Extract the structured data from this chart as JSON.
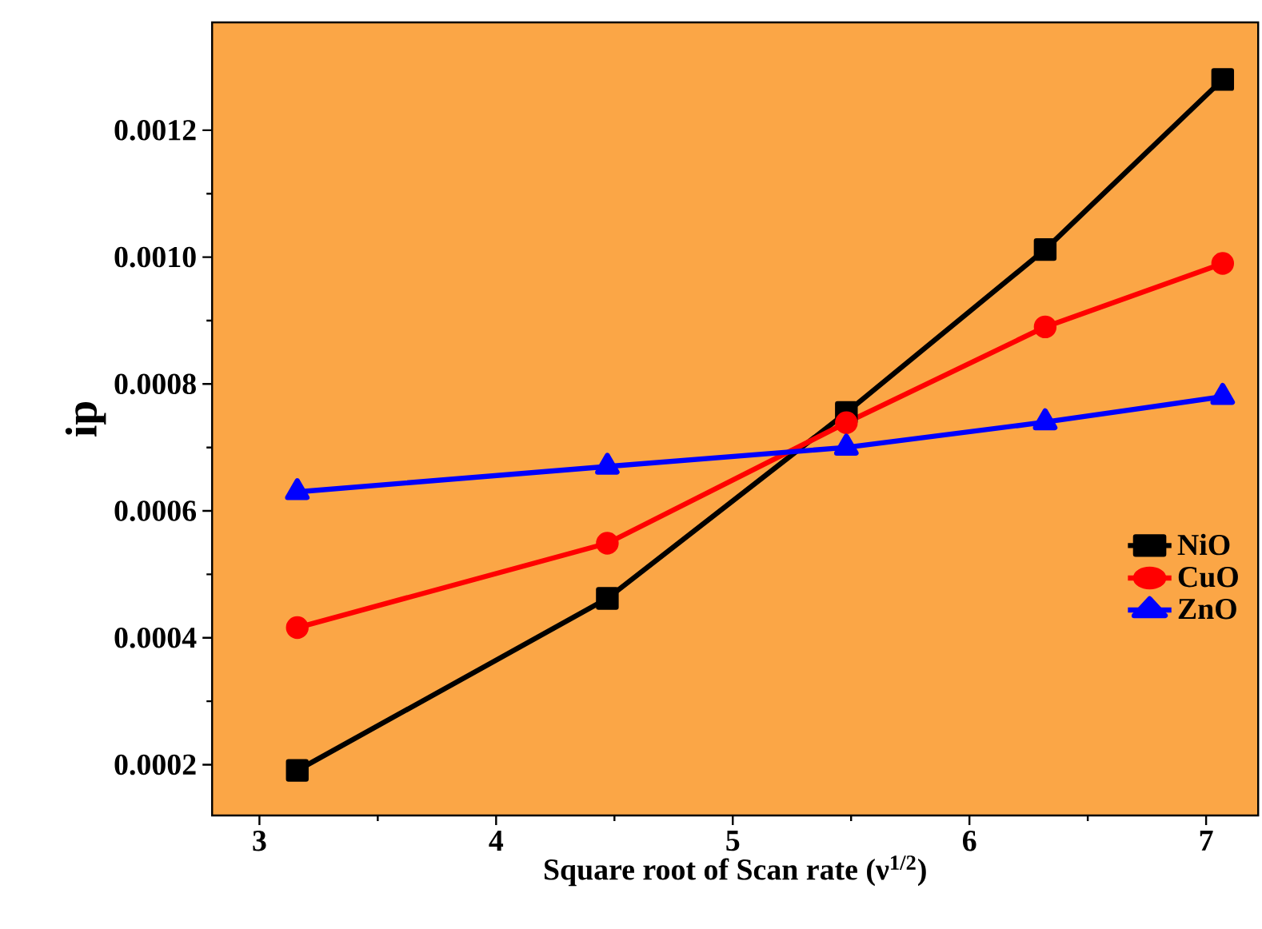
{
  "chart_data": {
    "type": "line",
    "xlabel": "Square root of Scan rate (ν$^{1/2}$)",
    "ylabel": "ip",
    "x": [
      3.16,
      4.47,
      5.48,
      6.32,
      7.07
    ],
    "series": [
      {
        "name": "NiO",
        "color": "#000000",
        "marker": "square",
        "values": [
          0.000191,
          0.000462,
          0.000755,
          0.001012,
          0.00128
        ]
      },
      {
        "name": "CuO",
        "color": "#ff0000",
        "marker": "circle",
        "values": [
          0.000416,
          0.000549,
          0.000739,
          0.00089,
          0.00099
        ]
      },
      {
        "name": "ZnO",
        "color": "#0000ff",
        "marker": "triangle",
        "values": [
          0.00063,
          0.00067,
          0.0007,
          0.00074,
          0.00078
        ]
      }
    ],
    "xlim": [
      2.8,
      7.22
    ],
    "ylim": [
      0.00012,
      0.00137
    ],
    "xticks": [
      3,
      4,
      5,
      6,
      7
    ],
    "yticks": [
      0.0002,
      0.0004,
      0.0006,
      0.0008,
      {
        "value": 0.001,
        "label": "0.0010"
      },
      0.0012
    ],
    "grid": false,
    "legend": "right",
    "line_style": "solid"
  }
}
